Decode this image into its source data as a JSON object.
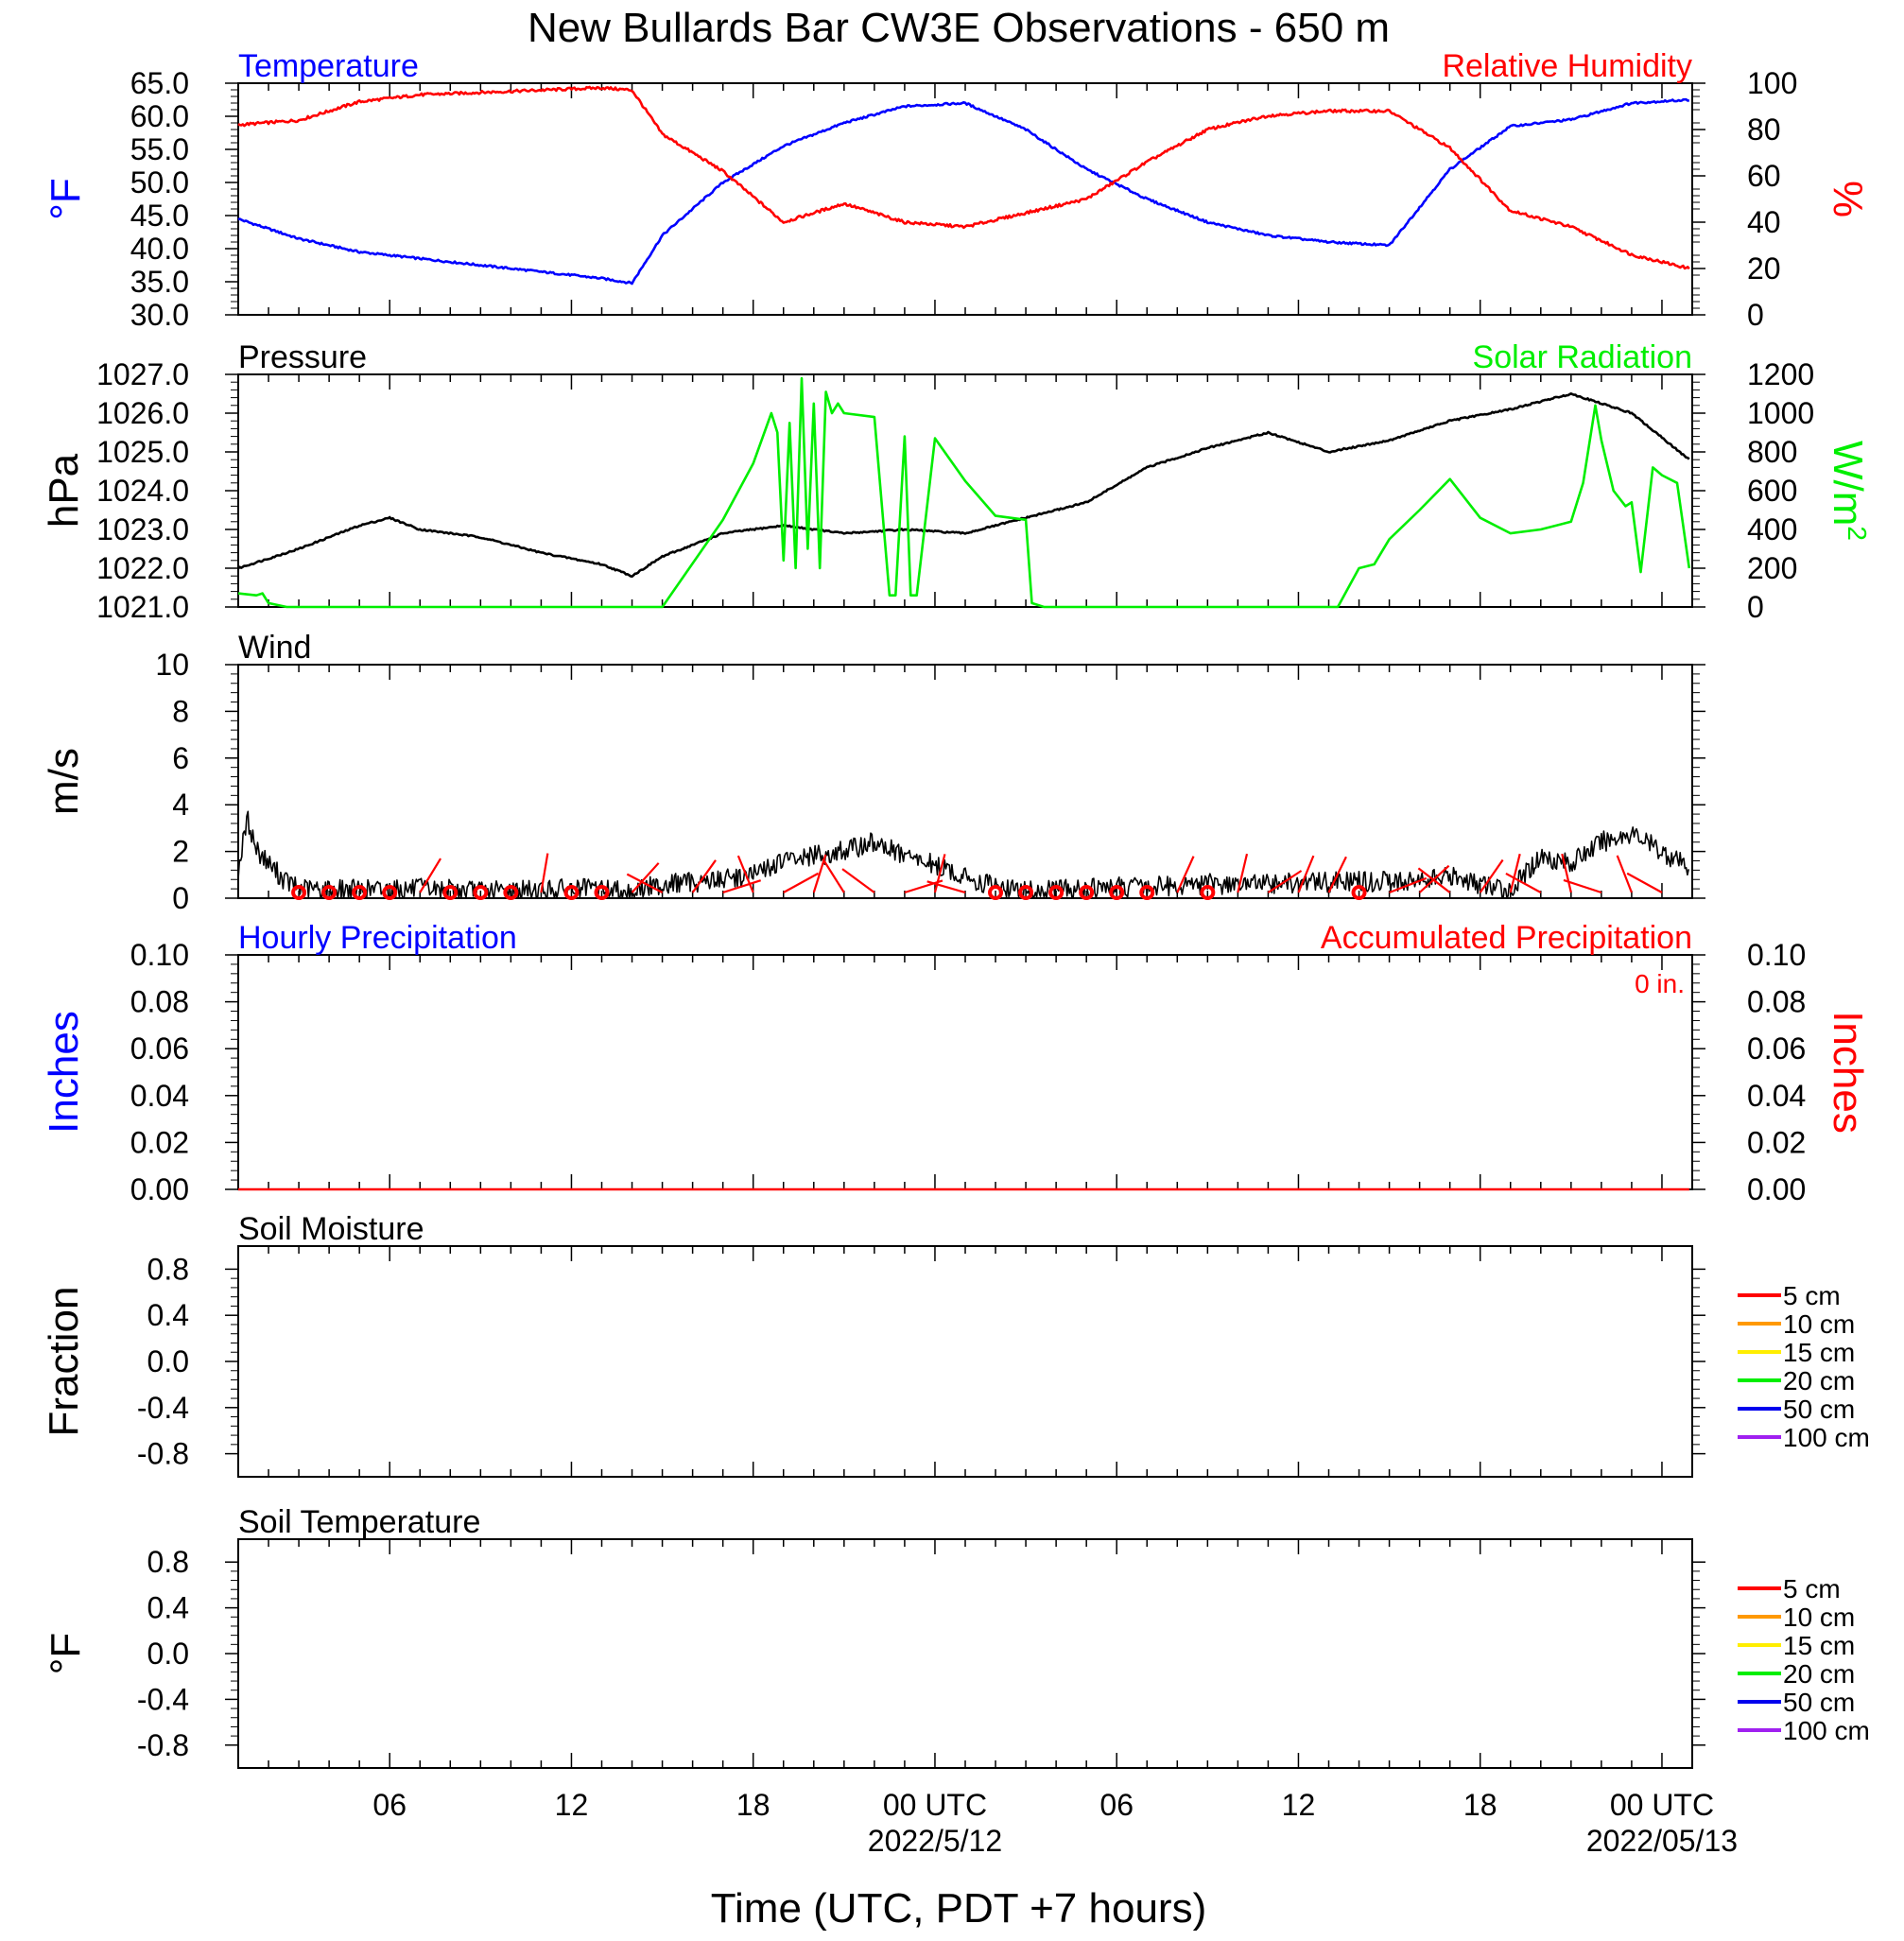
{
  "title": "New Bullards Bar CW3E Observations - 650 m",
  "xlabel": "Time (UTC, PDT +7 hours)",
  "colors": {
    "temperature": "#0000ff",
    "humidity": "#ff0000",
    "pressure": "#000000",
    "solar": "#00ee00",
    "wind": "#000000",
    "barb": "#ff0000",
    "hourly_precip": "#0000ff",
    "accum_precip": "#ff0000"
  },
  "chart_data": [
    {
      "type": "line",
      "id": "temp_rh",
      "left_title": "Temperature",
      "right_title": "Relative Humidity",
      "left_unit": "°F",
      "right_unit": "%",
      "left_ylim": [
        30,
        65
      ],
      "left_ticks": [
        "65.0",
        "60.0",
        "55.0",
        "50.0",
        "45.0",
        "40.0",
        "35.0",
        "30.0"
      ],
      "left_tick_values": [
        65,
        60,
        55,
        50,
        45,
        40,
        35,
        30
      ],
      "right_ylim": [
        0,
        100
      ],
      "right_ticks": [
        "100",
        "80",
        "60",
        "40",
        "20",
        "0"
      ],
      "right_tick_values": [
        100,
        80,
        60,
        40,
        20,
        0
      ],
      "x_hours": [
        0,
        2,
        4,
        6,
        8,
        10,
        12,
        13,
        14,
        16,
        18,
        20,
        22,
        24,
        26,
        28,
        30,
        32,
        34,
        36,
        38,
        40,
        42,
        44,
        46,
        47.9
      ],
      "series": [
        {
          "name": "Temperature",
          "axis": "left",
          "color_key": "temperature",
          "values": [
            44.5,
            41.5,
            39.5,
            38.5,
            37.5,
            36.5,
            35.5,
            34.8,
            42,
            50,
            55.5,
            59,
            61.5,
            62,
            58,
            52,
            47.5,
            44,
            42,
            41,
            40.5,
            52,
            58.5,
            59.5,
            62,
            62.5
          ]
        },
        {
          "name": "Relative Humidity",
          "axis": "right",
          "color_key": "humidity",
          "values": [
            82,
            84,
            92,
            95,
            96,
            97,
            98,
            97,
            78,
            62,
            40,
            48,
            40,
            38,
            44,
            50,
            66,
            80,
            86,
            88,
            88,
            72,
            45,
            38,
            26,
            20
          ]
        }
      ]
    },
    {
      "type": "line",
      "id": "press_solar",
      "left_title": "Pressure",
      "right_title": "Solar Radiation",
      "left_unit": "hPa",
      "right_unit": "W/m",
      "right_unit_sup": "2",
      "left_ylim": [
        1021,
        1027
      ],
      "left_ticks": [
        "1027.0",
        "1026.0",
        "1025.0",
        "1024.0",
        "1023.0",
        "1022.0",
        "1021.0"
      ],
      "left_tick_values": [
        1027,
        1026,
        1025,
        1024,
        1023,
        1022,
        1021
      ],
      "right_ylim": [
        0,
        1200
      ],
      "right_ticks": [
        "1200",
        "1000",
        "800",
        "600",
        "400",
        "200",
        "0"
      ],
      "right_tick_values": [
        1200,
        1000,
        800,
        600,
        400,
        200,
        0
      ],
      "series": [
        {
          "name": "Pressure",
          "axis": "left",
          "color_key": "pressure",
          "x_hours": [
            0,
            2,
            4,
            5,
            6,
            8,
            10,
            12,
            13,
            14,
            16,
            18,
            20,
            22,
            24,
            26,
            28,
            30,
            32,
            34,
            36,
            38,
            40,
            42,
            44,
            46,
            47.9
          ],
          "values": [
            1022.0,
            1022.5,
            1023.1,
            1023.3,
            1023.0,
            1022.8,
            1022.4,
            1022.1,
            1021.8,
            1022.3,
            1022.9,
            1023.1,
            1022.9,
            1023.0,
            1022.9,
            1023.3,
            1023.7,
            1024.6,
            1025.1,
            1025.5,
            1025.0,
            1025.3,
            1025.8,
            1026.1,
            1026.5,
            1026.0,
            1024.8
          ]
        },
        {
          "name": "Solar Radiation",
          "axis": "right",
          "color_key": "solar",
          "x_hours": [
            0,
            0.6,
            0.8,
            1,
            1.6,
            2,
            4,
            6,
            8,
            10,
            12,
            12.3,
            14,
            16,
            17,
            17.6,
            17.8,
            18,
            18.2,
            18.4,
            18.6,
            18.8,
            19,
            19.2,
            19.4,
            19.6,
            19.8,
            20,
            21,
            21.5,
            21.7,
            22,
            22.2,
            22.4,
            23,
            24,
            25,
            26,
            26.2,
            26.6,
            27,
            30,
            32,
            34,
            35,
            36,
            36.3,
            37,
            37.5,
            38,
            39,
            40,
            41,
            42,
            43,
            44,
            44.4,
            44.8,
            45,
            45.4,
            45.8,
            46,
            46.3,
            46.7,
            47,
            47.5,
            47.9
          ],
          "values": [
            70,
            60,
            70,
            20,
            0,
            0,
            0,
            0,
            0,
            0,
            0,
            0,
            0,
            450,
            740,
            1000,
            900,
            240,
            950,
            200,
            1180,
            300,
            1050,
            200,
            1110,
            1000,
            1050,
            1000,
            980,
            60,
            60,
            880,
            60,
            60,
            870,
            650,
            470,
            450,
            20,
            0,
            0,
            0,
            0,
            0,
            0,
            0,
            0,
            200,
            220,
            350,
            500,
            660,
            460,
            380,
            400,
            440,
            640,
            1040,
            860,
            600,
            520,
            540,
            180,
            720,
            680,
            640,
            200
          ]
        }
      ]
    },
    {
      "type": "line",
      "id": "wind",
      "left_title": "Wind",
      "left_unit": "m/s",
      "left_ylim": [
        0,
        10
      ],
      "left_ticks": [
        "10",
        "8",
        "6",
        "4",
        "2",
        "0"
      ],
      "left_tick_values": [
        10,
        8,
        6,
        4,
        2,
        0
      ],
      "series": [
        {
          "name": "Wind",
          "axis": "left",
          "color_key": "wind",
          "x_hours": [
            0,
            0.3,
            0.6,
            1,
            1.5,
            2,
            4,
            6,
            8,
            10,
            12,
            13,
            14,
            16,
            17,
            18,
            20,
            21,
            22,
            23,
            24,
            25,
            26,
            28,
            30,
            32,
            34,
            36,
            38,
            40,
            41,
            42,
            43,
            44,
            45,
            46,
            47,
            47.9
          ],
          "values": [
            1.2,
            3.4,
            2.1,
            1.5,
            0.8,
            0.4,
            0.35,
            0.4,
            0.3,
            0.35,
            0.4,
            0.3,
            0.6,
            0.8,
            1.0,
            1.6,
            2.0,
            2.4,
            1.8,
            1.4,
            0.9,
            0.5,
            0.3,
            0.4,
            0.5,
            0.6,
            0.6,
            0.7,
            0.7,
            0.9,
            0.6,
            0.3,
            1.8,
            1.5,
            2.4,
            2.8,
            2.0,
            1.3
          ]
        }
      ],
      "barb_hours": [
        2,
        3,
        4,
        5,
        6,
        7,
        8,
        9,
        10,
        11,
        12,
        13,
        14,
        15,
        16,
        17,
        18,
        19,
        20,
        21,
        22,
        23,
        24,
        25,
        26,
        27,
        28,
        29,
        30,
        31,
        32,
        33,
        34,
        35,
        36,
        37,
        38,
        39,
        40,
        41,
        42,
        43,
        44,
        45,
        46,
        47
      ],
      "calm_hours": [
        2,
        3,
        4,
        5,
        7,
        8,
        9,
        11,
        12,
        25,
        26,
        27,
        28,
        29,
        30,
        32,
        37
      ]
    },
    {
      "type": "line",
      "id": "precip",
      "left_title": "Hourly Precipitation",
      "right_title": "Accumulated Precipitation",
      "right_note": "0 in.",
      "left_unit": "Inches",
      "right_unit": "Inches",
      "left_ylim": [
        0,
        0.1
      ],
      "left_ticks": [
        "0.10",
        "0.08",
        "0.06",
        "0.04",
        "0.02",
        "0.00"
      ],
      "left_tick_values": [
        0.1,
        0.08,
        0.06,
        0.04,
        0.02,
        0
      ],
      "right_ticks": [
        "0.10",
        "0.08",
        "0.06",
        "0.04",
        "0.02",
        "0.00"
      ],
      "right_tick_values": [
        0.1,
        0.08,
        0.06,
        0.04,
        0.02,
        0
      ],
      "series": [
        {
          "name": "Accumulated Precipitation",
          "axis": "left",
          "color_key": "accum_precip",
          "x_hours": [
            0,
            47.9
          ],
          "values": [
            0,
            0
          ]
        }
      ]
    },
    {
      "type": "line",
      "id": "soil_moist",
      "left_title": "Soil Moisture",
      "left_unit": "Fraction",
      "left_ylim": [
        -1,
        1
      ],
      "left_ticks": [
        "0.8",
        "0.4",
        "0.0",
        "-0.4",
        "-0.8"
      ],
      "left_tick_values": [
        0.8,
        0.4,
        0,
        -0.4,
        -0.8
      ],
      "legend": [
        {
          "label": "5 cm",
          "color": "#ff0000"
        },
        {
          "label": "10 cm",
          "color": "#ff9900"
        },
        {
          "label": "15 cm",
          "color": "#ffee00"
        },
        {
          "label": "20 cm",
          "color": "#00ee00"
        },
        {
          "label": "50 cm",
          "color": "#0000ee"
        },
        {
          "label": "100 cm",
          "color": "#a020f0"
        }
      ],
      "series": []
    },
    {
      "type": "line",
      "id": "soil_temp",
      "left_title": "Soil Temperature",
      "left_unit": "°F",
      "left_ylim": [
        -1,
        1
      ],
      "left_ticks": [
        "0.8",
        "0.4",
        "0.0",
        "-0.4",
        "-0.8"
      ],
      "left_tick_values": [
        0.8,
        0.4,
        0,
        -0.4,
        -0.8
      ],
      "legend": [
        {
          "label": "5 cm",
          "color": "#ff0000"
        },
        {
          "label": "10 cm",
          "color": "#ff9900"
        },
        {
          "label": "15 cm",
          "color": "#ffee00"
        },
        {
          "label": "20 cm",
          "color": "#00ee00"
        },
        {
          "label": "50 cm",
          "color": "#0000ee"
        },
        {
          "label": "100 cm",
          "color": "#a020f0"
        }
      ],
      "series": []
    }
  ],
  "x_axis": {
    "hour_range": [
      0,
      48
    ],
    "ticks": [
      {
        "hour": 5,
        "label": "06",
        "sub": ""
      },
      {
        "hour": 11,
        "label": "12",
        "sub": ""
      },
      {
        "hour": 17,
        "label": "18",
        "sub": ""
      },
      {
        "hour": 23,
        "label": "00 UTC",
        "sub": "2022/5/12"
      },
      {
        "hour": 29,
        "label": "06",
        "sub": ""
      },
      {
        "hour": 35,
        "label": "12",
        "sub": ""
      },
      {
        "hour": 41,
        "label": "18",
        "sub": ""
      },
      {
        "hour": 47,
        "label": "00 UTC",
        "sub": "2022/05/13"
      }
    ]
  }
}
